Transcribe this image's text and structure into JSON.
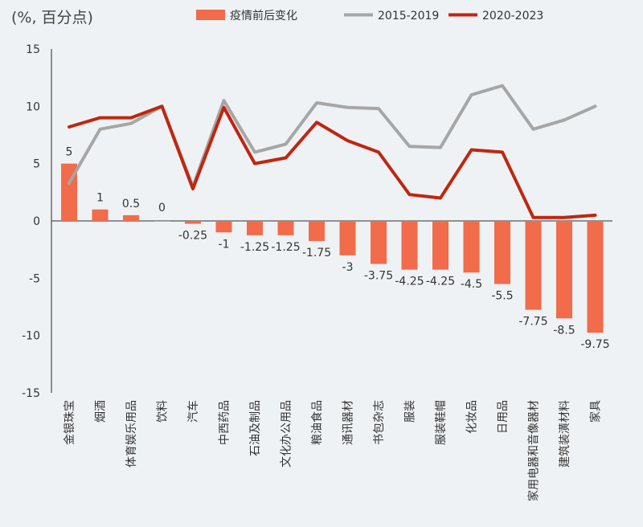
{
  "chart_data": {
    "type": "bar",
    "unit_label": "(%, 百分点)",
    "categories": [
      "金银珠宝",
      "烟酒",
      "体育娱乐用品",
      "饮料",
      "汽车",
      "中西药品",
      "石油及制品",
      "文化办公用品",
      "粮油食品",
      "通讯器材",
      "书包杂志",
      "服装",
      "服装鞋帽",
      "化妆品",
      "日用品",
      "家用电器和音像器材",
      "建筑装潢材料",
      "家具"
    ],
    "ylim": [
      -15,
      15
    ],
    "yticks": [
      15,
      10,
      5,
      0,
      -5,
      -10,
      -15
    ],
    "legend_position": "top",
    "series": [
      {
        "name": "疫情前后变化",
        "type": "bar",
        "color": "#f26b4a",
        "values": [
          5,
          1,
          0.5,
          0,
          -0.25,
          -1,
          -1.25,
          -1.25,
          -1.75,
          -3,
          -3.75,
          -4.25,
          -4.25,
          -4.5,
          -5.5,
          -7.75,
          -8.5,
          -9.75
        ],
        "labels": [
          "5",
          "1",
          "0.5",
          "0",
          "-0.25",
          "-1",
          "-1.25",
          "-1.25",
          "-1.75",
          "-3",
          "-3.75",
          "-4.25",
          "-4.25",
          "-4.5",
          "-5.5",
          "-7.75",
          "-8.5",
          "-9.75"
        ]
      },
      {
        "name": "2015-2019",
        "type": "line",
        "color": "#a6a6a6",
        "values": [
          3.3,
          8.0,
          8.5,
          10.0,
          3.0,
          10.5,
          6.0,
          6.7,
          10.3,
          9.9,
          9.8,
          6.5,
          6.4,
          11.0,
          11.8,
          8.0,
          8.8,
          10.0
        ]
      },
      {
        "name": "2020-2023",
        "type": "line",
        "color": "#c0260f",
        "values": [
          8.2,
          9.0,
          9.0,
          10.0,
          2.8,
          9.9,
          5.0,
          5.5,
          8.6,
          7.0,
          6.0,
          2.3,
          2.0,
          6.2,
          6.0,
          0.3,
          0.3,
          0.5
        ]
      }
    ]
  }
}
